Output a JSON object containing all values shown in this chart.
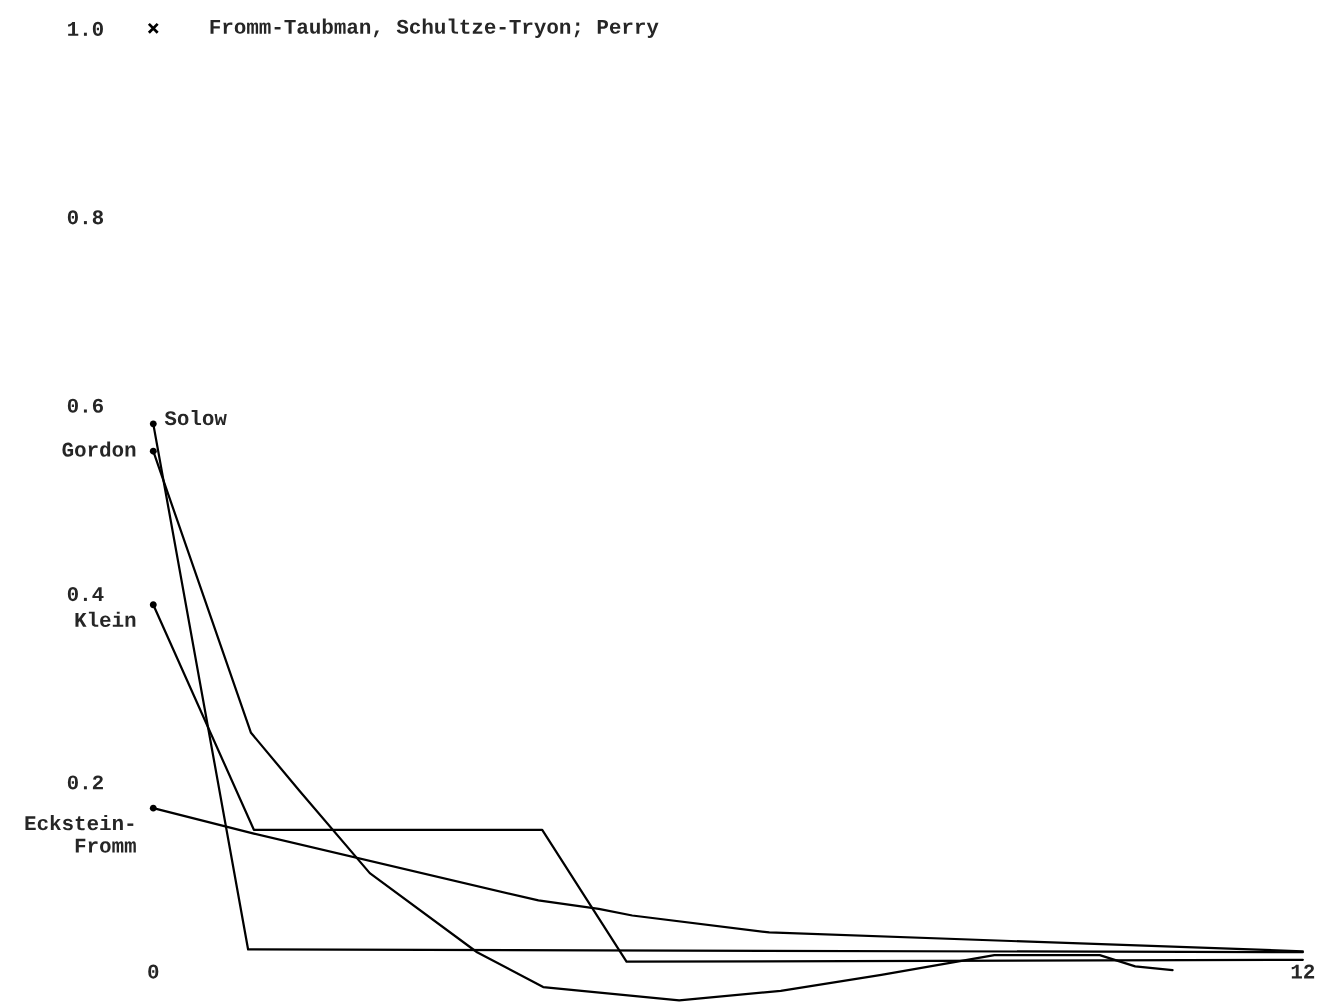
{
  "chart_data": {
    "type": "line",
    "xlim": [
      -1.6,
      12.2
    ],
    "ylim": [
      -0.037,
      1.03
    ],
    "xticks": [
      0,
      12
    ],
    "yticks": [
      0.2,
      0.4,
      0.6,
      0.8,
      {
        "value": 1.0,
        "label": "1.0"
      }
    ],
    "grid": false,
    "legend": false,
    "marker": "none",
    "line_style": "solid",
    "series": [
      {
        "name": "Solow",
        "color": "#000000",
        "x": [
          0,
          0.99,
          12
        ],
        "values": [
          0.58,
          0.022,
          0.019
        ]
      },
      {
        "name": "Gordon",
        "color": "#000000",
        "x": [
          0,
          1.02,
          1.53,
          2.26,
          3.38,
          4.07,
          5.49,
          6.55,
          7.6,
          8.78,
          9.88,
          10.25,
          10.64
        ],
        "values": [
          0.551,
          0.252,
          0.19,
          0.103,
          0.019,
          -0.018,
          -0.032,
          -0.022,
          -0.005,
          0.016,
          0.016,
          0.004,
          0.0
        ]
      },
      {
        "name": "Klein",
        "color": "#000000",
        "x": [
          0,
          1.05,
          4.06,
          4.94,
          12
        ],
        "values": [
          0.388,
          0.149,
          0.149,
          0.009,
          0.011
        ]
      },
      {
        "name": "Eckstein-\nFromm",
        "color": "#000000",
        "x": [
          0,
          1.05,
          4.02,
          4.65,
          5.0,
          6.43,
          12
        ],
        "values": [
          0.172,
          0.145,
          0.074,
          0.065,
          0.058,
          0.04,
          0.02
        ]
      },
      {
        "type": "scatter",
        "marker": "circle",
        "color": "#000000",
        "x": [
          0,
          0,
          0,
          0
        ],
        "values": [
          0.58,
          0.551,
          0.388,
          0.172
        ]
      },
      {
        "name": "Fromm-Taubman, Schultze-Tryon; Perry",
        "type": "scatter",
        "marker": "cross",
        "color": "#000000",
        "x": [
          0
        ],
        "values": [
          1.0
        ]
      }
    ]
  }
}
